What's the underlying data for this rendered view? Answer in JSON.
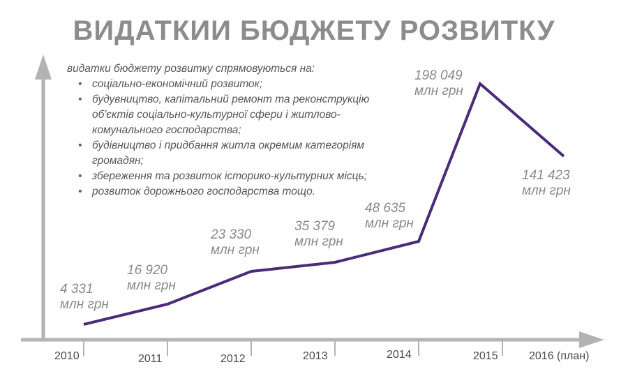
{
  "title": "ВИДАТКИИ БЮДЖЕТУ РОЗВИТКУ",
  "description": {
    "intro": "видатки бюджету розвитку спрямовуються на:",
    "items": [
      "соціально-економічний розвиток;",
      "будувництво, капітальний ремонт та реконструкцію об'єктів соціально-культурної сфери і житлово-комунального господарства;",
      "будівництво і придбання житла окремим категоріям громадян;",
      "збереження та розвиток історико-культурних місць;",
      "розвиток дорожнього господарства тощо."
    ]
  },
  "colors": {
    "line": "#4b2a7a",
    "axis": "#b3b3b3",
    "title": "#8c8c8c"
  },
  "chart_data": {
    "type": "line",
    "title": "ВИДАТКИИ БЮДЖЕТУ РОЗВИТКУ",
    "xlabel": "",
    "ylabel": "",
    "categories": [
      "2010",
      "2011",
      "2012",
      "2013",
      "2014",
      "2015",
      "2016 (план)"
    ],
    "values": [
      4331,
      16920,
      23330,
      35379,
      48635,
      198049,
      141423
    ],
    "value_labels": [
      "4 331",
      "16 920",
      "23 330",
      "35 379",
      "48 635",
      "198 049",
      "141 423"
    ],
    "unit": "млн грн",
    "grid": false
  }
}
